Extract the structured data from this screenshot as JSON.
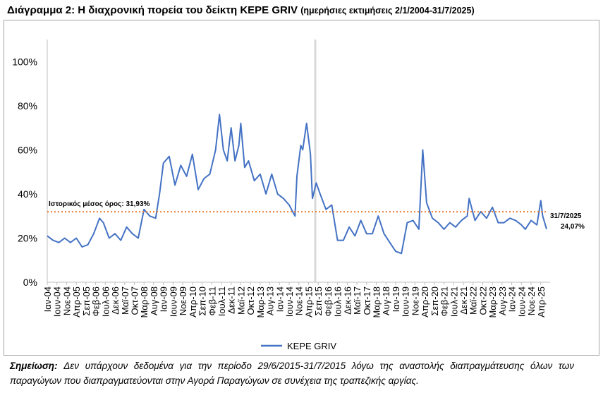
{
  "title": {
    "main": "Διάγραμμα 2: Η διαχρονική πορεία του δείκτη ΚΕΡΕ GRIV",
    "sub": "(ημερήσιες εκτιμήσεις 2/1/2004-31/7/2025)"
  },
  "note": {
    "label": "Σημείωση:",
    "text": "Δεν υπάρχουν δεδομένα για την περίοδο 29/6/2015-31/7/2015 λόγω της αναστολής διαπραγμάτευσης όλων των παραγώγων που διαπραγματεύονται στην Αγορά Παραγώγων σε συνέχεια της τραπεζικής αργίας."
  },
  "colors": {
    "series": "#4472c4",
    "mean_line": "#ed7d31",
    "gap_band": "#d9d9d9",
    "axis": "#bfbfbf"
  },
  "chart_data": {
    "type": "line",
    "ylim": [
      0,
      110
    ],
    "yticks": [
      0,
      20,
      40,
      60,
      80,
      100
    ],
    "ytick_labels": [
      "0%",
      "20%",
      "40%",
      "60%",
      "80%",
      "100%"
    ],
    "grid": false,
    "legend": "bottom",
    "x_range": [
      "2004-01",
      "2025-07"
    ],
    "xtick_labels": [
      "Ιαν-04",
      "Ιουν-04",
      "Νοε-04",
      "Απρ-05",
      "Σεπ-05",
      "Φεβ-06",
      "Ιουλ-06",
      "Δεκ-06",
      "Μαϊ-07",
      "Οκτ-07",
      "Μαρ-08",
      "Αυγ-08",
      "Ιαν-09",
      "Ιουν-09",
      "Νοε-09",
      "Απρ-10",
      "Σεπ-10",
      "Φεβ-11",
      "Ιουλ-11",
      "Δεκ-11",
      "Μαϊ-12",
      "Οκτ-12",
      "Μαρ-13",
      "Αυγ-13",
      "Ιαν-14",
      "Ιουν-14",
      "Νοε-14",
      "Απρ-15",
      "Σεπ-15",
      "Φεβ-16",
      "Ιουλ-16",
      "Δεκ-16",
      "Μαϊ-17",
      "Οκτ-17",
      "Μαρ-18",
      "Αυγ-18",
      "Ιαν-19",
      "Ιουν-19",
      "Νοε-19",
      "Απρ-20",
      "Σεπ-20",
      "Φεβ-21",
      "Ιουλ-21",
      "Δεκ-21",
      "Μαϊ-22",
      "Οκτ-22",
      "Μαρ-23",
      "Αυγ-23",
      "Ιαν-24",
      "Ιουν-24",
      "Νοε-24",
      "Απρ-25"
    ],
    "gap": [
      "2015-06-29",
      "2015-07-31"
    ],
    "mean": {
      "value": 31.93,
      "label": "Ιστορικός μέσος όρος: 31,93%"
    },
    "end_annotation": {
      "date_label": "31/7/2025",
      "value_label": "24,07%",
      "value": 24.07
    },
    "series": [
      {
        "name": "ΚΕΡΕ GRIV",
        "x": [
          "2004-01",
          "2004-04",
          "2004-07",
          "2004-10",
          "2005-01",
          "2005-04",
          "2005-07",
          "2005-10",
          "2006-01",
          "2006-04",
          "2006-06",
          "2006-09",
          "2006-12",
          "2007-03",
          "2007-06",
          "2007-09",
          "2007-12",
          "2008-03",
          "2008-06",
          "2008-09",
          "2008-11",
          "2009-01",
          "2009-04",
          "2009-07",
          "2009-10",
          "2010-01",
          "2010-04",
          "2010-07",
          "2010-10",
          "2011-01",
          "2011-04",
          "2011-06",
          "2011-08",
          "2011-10",
          "2011-12",
          "2012-02",
          "2012-04",
          "2012-05",
          "2012-07",
          "2012-09",
          "2012-12",
          "2013-03",
          "2013-06",
          "2013-09",
          "2013-12",
          "2014-03",
          "2014-06",
          "2014-09",
          "2014-10",
          "2014-12",
          "2015-01",
          "2015-03",
          "2015-05",
          "2015-06",
          "2015-08",
          "2015-10",
          "2016-01",
          "2016-04",
          "2016-07",
          "2016-10",
          "2017-01",
          "2017-04",
          "2017-07",
          "2017-10",
          "2018-01",
          "2018-04",
          "2018-07",
          "2018-10",
          "2019-01",
          "2019-04",
          "2019-07",
          "2019-10",
          "2020-01",
          "2020-03",
          "2020-05",
          "2020-08",
          "2020-11",
          "2021-02",
          "2021-05",
          "2021-08",
          "2021-11",
          "2022-02",
          "2022-03",
          "2022-06",
          "2022-09",
          "2022-12",
          "2023-03",
          "2023-06",
          "2023-09",
          "2023-12",
          "2024-03",
          "2024-06",
          "2024-08",
          "2024-11",
          "2025-02",
          "2025-04",
          "2025-05",
          "2025-07"
        ],
        "values": [
          21,
          19,
          18,
          20,
          18,
          20,
          16,
          17,
          22,
          29,
          27,
          20,
          22,
          19,
          25,
          22,
          20,
          33,
          30,
          29,
          40,
          54,
          57,
          44,
          53,
          48,
          58,
          42,
          47,
          49,
          60,
          76,
          60,
          55,
          70,
          55,
          62,
          72,
          52,
          55,
          46,
          49,
          40,
          49,
          40,
          38,
          35,
          30,
          48,
          62,
          60,
          72,
          58,
          38,
          45,
          40,
          33,
          35,
          19,
          19,
          25,
          21,
          28,
          22,
          22,
          30,
          22,
          18,
          14,
          13,
          27,
          28,
          24,
          60,
          36,
          29,
          27,
          24,
          27,
          25,
          28,
          30,
          38,
          28,
          32,
          29,
          34,
          27,
          27,
          29,
          28,
          26,
          24,
          28,
          26,
          37,
          30,
          24.07
        ]
      }
    ]
  }
}
